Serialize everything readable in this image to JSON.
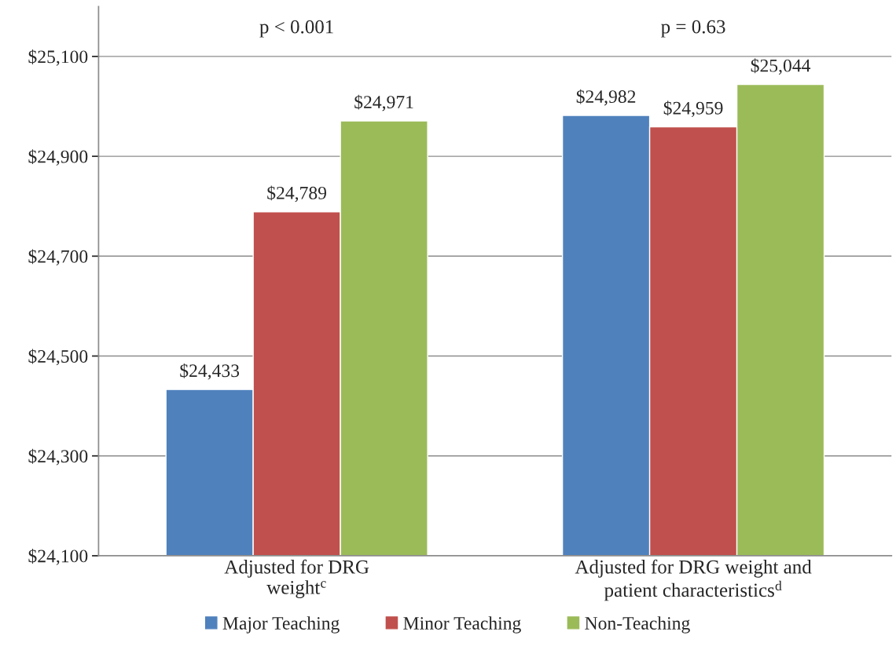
{
  "chart_data": {
    "type": "bar",
    "categories": [
      "Adjusted for DRG\nweight$^{c}$",
      "Adjusted for DRG weight and\npatient characteristics$^{d}$"
    ],
    "series": [
      {
        "name": "Major Teaching",
        "color": "#4f81bd",
        "values": [
          24433,
          24982
        ],
        "value_labels": [
          "$24,433",
          "$24,982"
        ]
      },
      {
        "name": "Minor Teaching",
        "color": "#c0504d",
        "values": [
          24789,
          24959
        ],
        "value_labels": [
          "$24,789",
          "$24,959"
        ]
      },
      {
        "name": "Non-Teaching",
        "color": "#9bbb59",
        "values": [
          24971,
          25044
        ],
        "value_labels": [
          "$24,971",
          "$25,044"
        ]
      }
    ],
    "ylim": [
      24100,
      25200
    ],
    "yticks": [
      {
        "value": 24100,
        "label": "$24,100"
      },
      {
        "value": 24300,
        "label": "$24,300"
      },
      {
        "value": 24500,
        "label": "$24,500"
      },
      {
        "value": 24700,
        "label": "$24,700"
      },
      {
        "value": 24900,
        "label": "$24,900"
      },
      {
        "value": 25100,
        "label": "$25,100"
      }
    ],
    "annotations": [
      "p < 0.001",
      "p = 0.63"
    ],
    "grid": "y",
    "legend": "bottom"
  }
}
